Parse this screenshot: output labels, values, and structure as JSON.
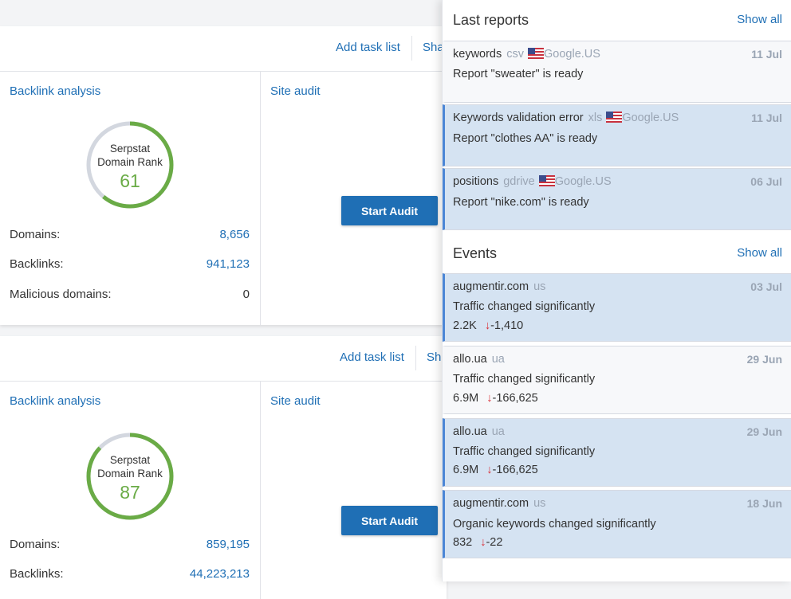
{
  "projects": [
    {
      "add_task_list": "Add task list",
      "share_label": "Sha",
      "backlink": {
        "title": "Backlink analysis",
        "rank_label_1": "Serpstat",
        "rank_label_2": "Domain Rank",
        "rank_value": "61",
        "rank_fraction": 0.61,
        "stats": [
          {
            "label": "Domains:",
            "value": "8,656"
          },
          {
            "label": "Backlinks:",
            "value": "941,123"
          },
          {
            "label": "Malicious domains:",
            "value": "0"
          }
        ]
      },
      "audit": {
        "title": "Site audit",
        "button": "Start Audit"
      }
    },
    {
      "add_task_list": "Add task list",
      "share_label": "Sh",
      "backlink": {
        "title": "Backlink analysis",
        "rank_label_1": "Serpstat",
        "rank_label_2": "Domain Rank",
        "rank_value": "87",
        "rank_fraction": 0.87,
        "stats": [
          {
            "label": "Domains:",
            "value": "859,195"
          },
          {
            "label": "Backlinks:",
            "value": "44,223,213"
          }
        ]
      },
      "audit": {
        "title": "Site audit",
        "button": "Start Audit"
      }
    }
  ],
  "last_reports": {
    "title": "Last reports",
    "show_all": "Show all",
    "items": [
      {
        "name": "keywords",
        "format": "csv",
        "engine": "Google.US",
        "date": "11 Jul",
        "message": "Report \"sweater\" is ready",
        "unread": false
      },
      {
        "name": "Keywords validation error",
        "format": "xls",
        "engine": "Google.US",
        "date": "11 Jul",
        "message": "Report \"clothes AA\" is ready",
        "unread": true
      },
      {
        "name": "positions",
        "format": "gdrive",
        "engine": "Google.US",
        "date": "06 Jul",
        "message": "Report \"nike.com\" is ready",
        "unread": true
      }
    ]
  },
  "events": {
    "title": "Events",
    "show_all": "Show all",
    "items": [
      {
        "domain": "augmentir.com",
        "region": "us",
        "date": "03 Jul",
        "message": "Traffic changed significantly",
        "value": "2.2K",
        "change": "-1,410",
        "unread": true
      },
      {
        "domain": "allo.ua",
        "region": "ua",
        "date": "29 Jun",
        "message": "Traffic changed significantly",
        "value": "6.9M",
        "change": "-166,625",
        "unread": false
      },
      {
        "domain": "allo.ua",
        "region": "ua",
        "date": "29 Jun",
        "message": "Traffic changed significantly",
        "value": "6.9M",
        "change": "-166,625",
        "unread": true
      },
      {
        "domain": "augmentir.com",
        "region": "us",
        "date": "18 Jun",
        "message": "Organic keywords changed significantly",
        "value": "832",
        "change": "-22",
        "unread": true
      }
    ]
  },
  "colors": {
    "accent": "#1f6fb5",
    "rank_green": "#6aab46",
    "unread_bg": "#d5e3f2",
    "negative": "#d9363e"
  }
}
